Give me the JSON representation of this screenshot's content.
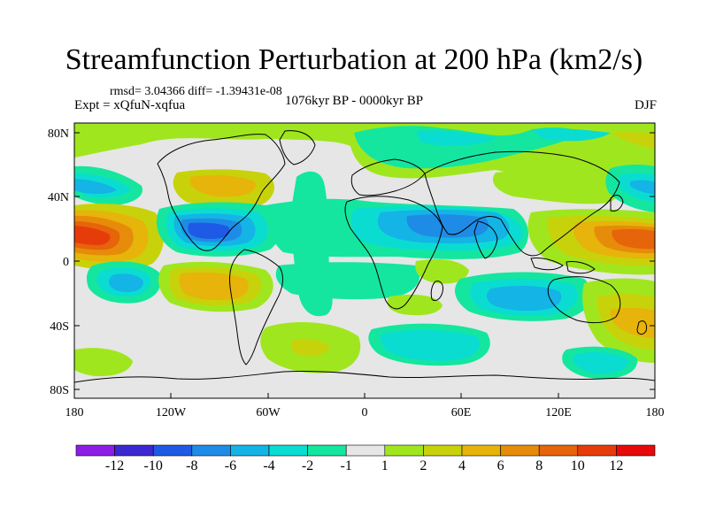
{
  "header": {
    "title": "Streamfunction Perturbation at 200 hPa (km2/s)",
    "stats": "rmsd= 3.04366 diff= -1.39431e-08",
    "experiment": "Expt = xQfuN-xqfua",
    "period": "1076kyr BP - 0000kyr BP",
    "season": "DJF"
  },
  "axes": {
    "lat_ticks": [
      "80N",
      "40N",
      "0",
      "40S",
      "80S"
    ],
    "lon_ticks": [
      "180",
      "120W",
      "60W",
      "0",
      "60E",
      "120E",
      "180"
    ]
  },
  "colorbar": {
    "labels": [
      "-12",
      "-10",
      "-8",
      "-6",
      "-4",
      "-2",
      "-1",
      "1",
      "2",
      "4",
      "6",
      "8",
      "10",
      "12"
    ],
    "colors": [
      "#8c1ee6",
      "#3c28d2",
      "#1e5ae6",
      "#1e8ce6",
      "#14b4e6",
      "#0adcd2",
      "#14e6a0",
      "#e6e6e6",
      "#a0e61e",
      "#c8d20a",
      "#e6b40a",
      "#e68c0a",
      "#e6640a",
      "#e63c0a",
      "#e60a0a"
    ]
  }
}
